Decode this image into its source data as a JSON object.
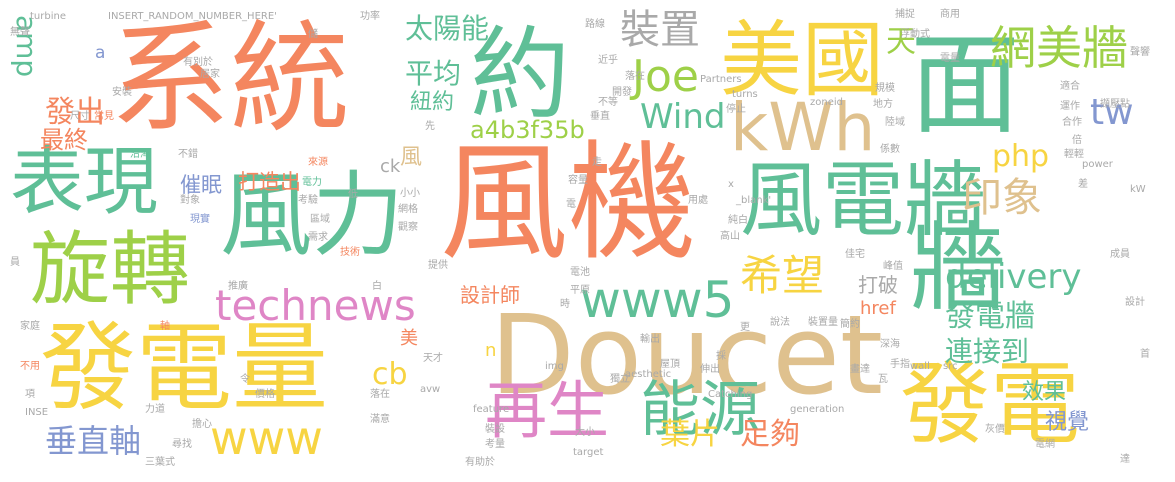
{
  "palette": {
    "orange": "#f4865f",
    "green": "#5fbf97",
    "yellow": "#f7d442",
    "tan": "#dfc18e",
    "pink": "#df86c6",
    "lime": "#9ed048",
    "blue": "#8397d0",
    "gray": "#a9a9a9"
  },
  "words": [
    {
      "text": "風機",
      "weight": 130,
      "color": "orange"
    },
    {
      "text": "系統",
      "weight": 118,
      "color": "orange"
    },
    {
      "text": "Doucet",
      "weight": 108,
      "color": "tan"
    },
    {
      "text": "面",
      "weight": 105,
      "color": "green"
    },
    {
      "text": "發電量",
      "weight": 92,
      "color": "yellow"
    },
    {
      "text": "約",
      "weight": 90,
      "color": "green"
    },
    {
      "text": "風力",
      "weight": 88,
      "color": "green"
    },
    {
      "text": "牆",
      "weight": 88,
      "color": "green"
    },
    {
      "text": "發電",
      "weight": 84,
      "color": "yellow"
    },
    {
      "text": "美國",
      "weight": 78,
      "color": "yellow"
    },
    {
      "text": "風電牆",
      "weight": 76,
      "color": "green"
    },
    {
      "text": "旋轉",
      "weight": 70,
      "color": "lime"
    },
    {
      "text": "表現",
      "weight": 70,
      "color": "green"
    },
    {
      "text": "kWh",
      "weight": 64,
      "color": "tan"
    },
    {
      "text": "再生",
      "weight": 56,
      "color": "pink"
    },
    {
      "text": "能源",
      "weight": 52,
      "color": "green"
    },
    {
      "text": "www5",
      "weight": 48,
      "color": "green"
    },
    {
      "text": "網美牆",
      "weight": 46,
      "color": "lime"
    },
    {
      "text": "www",
      "weight": 44,
      "color": "yellow"
    },
    {
      "text": "technews",
      "weight": 40,
      "color": "pink"
    },
    {
      "text": "希望",
      "weight": 40,
      "color": "yellow"
    },
    {
      "text": "Joe",
      "weight": 40,
      "color": "lime"
    },
    {
      "text": "印象",
      "weight": 38,
      "color": "tan"
    },
    {
      "text": "裝置",
      "weight": 36,
      "color": "gray"
    },
    {
      "text": "Wind",
      "weight": 32,
      "color": "green"
    },
    {
      "text": "delivery",
      "weight": 32,
      "color": "green"
    },
    {
      "text": "tw",
      "weight": 32,
      "color": "blue"
    },
    {
      "text": "發電牆",
      "weight": 30,
      "color": "green"
    },
    {
      "text": "垂直軸",
      "weight": 30,
      "color": "blue"
    },
    {
      "text": "葉片",
      "weight": 30,
      "color": "yellow"
    },
    {
      "text": "足夠",
      "weight": 30,
      "color": "orange"
    },
    {
      "text": "發出",
      "weight": 28,
      "color": "orange"
    },
    {
      "text": "php",
      "weight": 28,
      "color": "yellow"
    },
    {
      "text": "cb",
      "weight": 28,
      "color": "yellow"
    },
    {
      "text": "天",
      "weight": 28,
      "color": "lime"
    },
    {
      "text": "太陽能",
      "weight": 26,
      "color": "green"
    },
    {
      "text": "平均",
      "weight": 26,
      "color": "green"
    },
    {
      "text": "連接到",
      "weight": 26,
      "color": "green"
    },
    {
      "text": "amp",
      "weight": 24,
      "color": "green"
    },
    {
      "text": "a4b3f35b",
      "weight": 22,
      "color": "lime"
    },
    {
      "text": "最終",
      "weight": 22,
      "color": "orange"
    },
    {
      "text": "紐約",
      "weight": 20,
      "color": "green"
    },
    {
      "text": "風",
      "weight": 20,
      "color": "tan"
    },
    {
      "text": "打造出",
      "weight": 20,
      "color": "orange"
    },
    {
      "text": "催眠",
      "weight": 20,
      "color": "blue"
    },
    {
      "text": "效果",
      "weight": 20,
      "color": "green"
    },
    {
      "text": "視覺",
      "weight": 20,
      "color": "blue"
    },
    {
      "text": "設計師",
      "weight": 18,
      "color": "orange"
    },
    {
      "text": "打破",
      "weight": 18,
      "color": "gray"
    },
    {
      "text": "href",
      "weight": 18,
      "color": "orange"
    },
    {
      "text": "ck",
      "weight": 18,
      "color": "gray"
    },
    {
      "text": "美",
      "weight": 18,
      "color": "orange"
    },
    {
      "text": "n",
      "weight": 18,
      "color": "yellow"
    },
    {
      "text": "a",
      "weight": 16,
      "color": "blue"
    },
    {
      "text": "turbine",
      "weight": 10,
      "color": "gray"
    },
    {
      "text": "INSERT_RANDOM_NUMBER_HERE'",
      "weight": 10,
      "color": "gray"
    },
    {
      "text": "無聲",
      "weight": 10,
      "color": "gray"
    },
    {
      "text": "有別於",
      "weight": 10,
      "color": "gray"
    },
    {
      "text": "居家",
      "weight": 10,
      "color": "gray"
    },
    {
      "text": "安裝",
      "weight": 10,
      "color": "gray"
    },
    {
      "text": "常見",
      "weight": 10,
      "color": "orange"
    },
    {
      "text": "尺寸",
      "weight": 10,
      "color": "gray"
    },
    {
      "text": "沿海",
      "weight": 10,
      "color": "green"
    },
    {
      "text": "不錯",
      "weight": 10,
      "color": "gray"
    },
    {
      "text": "來源",
      "weight": 10,
      "color": "orange"
    },
    {
      "text": "電力",
      "weight": 10,
      "color": "green"
    },
    {
      "text": "考驗",
      "weight": 10,
      "color": "gray"
    },
    {
      "text": "低",
      "weight": 10,
      "color": "gray"
    },
    {
      "text": "對象",
      "weight": 10,
      "color": "gray"
    },
    {
      "text": "現實",
      "weight": 10,
      "color": "blue"
    },
    {
      "text": "區域",
      "weight": 10,
      "color": "gray"
    },
    {
      "text": "需求",
      "weight": 10,
      "color": "gray"
    },
    {
      "text": "技術",
      "weight": 10,
      "color": "orange"
    },
    {
      "text": "觀察",
      "weight": 10,
      "color": "gray"
    },
    {
      "text": "網格",
      "weight": 10,
      "color": "gray"
    },
    {
      "text": "推廣",
      "weight": 10,
      "color": "gray"
    },
    {
      "text": "提供",
      "weight": 10,
      "color": "gray"
    },
    {
      "text": "白",
      "weight": 10,
      "color": "gray"
    },
    {
      "text": "家庭",
      "weight": 10,
      "color": "gray"
    },
    {
      "text": "軸",
      "weight": 10,
      "color": "orange"
    },
    {
      "text": "不用",
      "weight": 10,
      "color": "orange"
    },
    {
      "text": "天才",
      "weight": 10,
      "color": "gray"
    },
    {
      "text": "令",
      "weight": 10,
      "color": "gray"
    },
    {
      "text": "價格",
      "weight": 10,
      "color": "gray"
    },
    {
      "text": "項",
      "weight": 10,
      "color": "gray"
    },
    {
      "text": "INSE",
      "weight": 10,
      "color": "gray"
    },
    {
      "text": "力道",
      "weight": 10,
      "color": "gray"
    },
    {
      "text": "擔心",
      "weight": 10,
      "color": "gray"
    },
    {
      "text": "尋找",
      "weight": 10,
      "color": "gray"
    },
    {
      "text": "滿意",
      "weight": 10,
      "color": "gray"
    },
    {
      "text": "三葉式",
      "weight": 10,
      "color": "gray"
    },
    {
      "text": "落在",
      "weight": 10,
      "color": "gray"
    },
    {
      "text": "avw",
      "weight": 10,
      "color": "gray"
    },
    {
      "text": "feature",
      "weight": 10,
      "color": "gray"
    },
    {
      "text": "考量",
      "weight": 10,
      "color": "gray"
    },
    {
      "text": "裝設",
      "weight": 10,
      "color": "gray"
    },
    {
      "text": "有助於",
      "weight": 10,
      "color": "gray"
    },
    {
      "text": "target",
      "weight": 10,
      "color": "gray"
    },
    {
      "text": "大小",
      "weight": 10,
      "color": "gray"
    },
    {
      "text": "Catching",
      "weight": 10,
      "color": "gray"
    },
    {
      "text": "generation",
      "weight": 10,
      "color": "gray"
    },
    {
      "text": "wall",
      "weight": 10,
      "color": "gray"
    },
    {
      "text": "src",
      "weight": 10,
      "color": "gray"
    },
    {
      "text": "手指",
      "weight": 10,
      "color": "gray"
    },
    {
      "text": "畫達",
      "weight": 10,
      "color": "gray"
    },
    {
      "text": "瓦",
      "weight": 10,
      "color": "gray"
    },
    {
      "text": "深海",
      "weight": 10,
      "color": "gray"
    },
    {
      "text": "簡約",
      "weight": 10,
      "color": "gray"
    },
    {
      "text": "裝置量",
      "weight": 10,
      "color": "gray"
    },
    {
      "text": "說法",
      "weight": 10,
      "color": "gray"
    },
    {
      "text": "更",
      "weight": 10,
      "color": "gray"
    },
    {
      "text": "輸出",
      "weight": 10,
      "color": "gray"
    },
    {
      "text": "屋頂",
      "weight": 10,
      "color": "gray"
    },
    {
      "text": "伸出",
      "weight": 10,
      "color": "gray"
    },
    {
      "text": "aesthetic",
      "weight": 10,
      "color": "gray"
    },
    {
      "text": "採",
      "weight": 10,
      "color": "gray"
    },
    {
      "text": "img",
      "weight": 10,
      "color": "gray"
    },
    {
      "text": "獨立",
      "weight": 10,
      "color": "gray"
    },
    {
      "text": "電池",
      "weight": 10,
      "color": "gray"
    },
    {
      "text": "平原",
      "weight": 10,
      "color": "gray"
    },
    {
      "text": "時",
      "weight": 10,
      "color": "gray"
    },
    {
      "text": "高山",
      "weight": 10,
      "color": "gray"
    },
    {
      "text": "純白",
      "weight": 10,
      "color": "gray"
    },
    {
      "text": "用處",
      "weight": 10,
      "color": "gray"
    },
    {
      "text": "電",
      "weight": 10,
      "color": "gray"
    },
    {
      "text": "走",
      "weight": 10,
      "color": "gray"
    },
    {
      "text": "容量",
      "weight": 10,
      "color": "gray"
    },
    {
      "text": "x",
      "weight": 10,
      "color": "gray"
    },
    {
      "text": "_blank'",
      "weight": 10,
      "color": "gray"
    },
    {
      "text": "小小",
      "weight": 10,
      "color": "gray"
    },
    {
      "text": "停止",
      "weight": 10,
      "color": "gray"
    },
    {
      "text": "垂直",
      "weight": 10,
      "color": "gray"
    },
    {
      "text": "不等",
      "weight": 10,
      "color": "gray"
    },
    {
      "text": "落在 ",
      "weight": 10,
      "color": "gray"
    },
    {
      "text": "開發",
      "weight": 10,
      "color": "gray"
    },
    {
      "text": "近乎",
      "weight": 10,
      "color": "gray"
    },
    {
      "text": "路線",
      "weight": 10,
      "color": "gray"
    },
    {
      "text": "Partners",
      "weight": 10,
      "color": "gray"
    },
    {
      "text": "turns",
      "weight": 10,
      "color": "gray"
    },
    {
      "text": "zoneid",
      "weight": 10,
      "color": "gray"
    },
    {
      "text": "陸域",
      "weight": 10,
      "color": "gray"
    },
    {
      "text": "地方",
      "weight": 10,
      "color": "gray"
    },
    {
      "text": "規模",
      "weight": 10,
      "color": "gray"
    },
    {
      "text": "捕捉",
      "weight": 10,
      "color": "gray"
    },
    {
      "text": "商用",
      "weight": 10,
      "color": "gray"
    },
    {
      "text": "浮動式",
      "weight": 10,
      "color": "gray"
    },
    {
      "text": "電量",
      "weight": 10,
      "color": "gray"
    },
    {
      "text": "擷壓點",
      "weight": 10,
      "color": "gray"
    },
    {
      "text": "聲響",
      "weight": 10,
      "color": "gray"
    },
    {
      "text": "適合",
      "weight": 10,
      "color": "gray"
    },
    {
      "text": "運作",
      "weight": 10,
      "color": "gray"
    },
    {
      "text": "合作",
      "weight": 10,
      "color": "gray"
    },
    {
      "text": "倍",
      "weight": 10,
      "color": "gray"
    },
    {
      "text": "輕輕",
      "weight": 10,
      "color": "gray"
    },
    {
      "text": "power",
      "weight": 10,
      "color": "gray"
    },
    {
      "text": "差",
      "weight": 10,
      "color": "gray"
    },
    {
      "text": "kW",
      "weight": 10,
      "color": "gray"
    },
    {
      "text": "先",
      "weight": 10,
      "color": "gray"
    },
    {
      "text": "係數",
      "weight": 10,
      "color": "gray"
    },
    {
      "text": "佳宅",
      "weight": 10,
      "color": "gray"
    },
    {
      "text": "峰值",
      "weight": 10,
      "color": "gray"
    },
    {
      "text": "成員",
      "weight": 10,
      "color": "gray"
    },
    {
      "text": "設計",
      "weight": 10,
      "color": "gray"
    },
    {
      "text": "首",
      "weight": 10,
      "color": "gray"
    },
    {
      "text": "灰價",
      "weight": 10,
      "color": "gray"
    },
    {
      "text": "電網",
      "weight": 10,
      "color": "gray"
    },
    {
      "text": "達",
      "weight": 10,
      "color": "gray"
    },
    {
      "text": "功率",
      "weight": 10,
      "color": "gray"
    },
    {
      "text": "儲",
      "weight": 10,
      "color": "gray"
    },
    {
      "text": "員",
      "weight": 10,
      "color": "gray"
    }
  ]
}
